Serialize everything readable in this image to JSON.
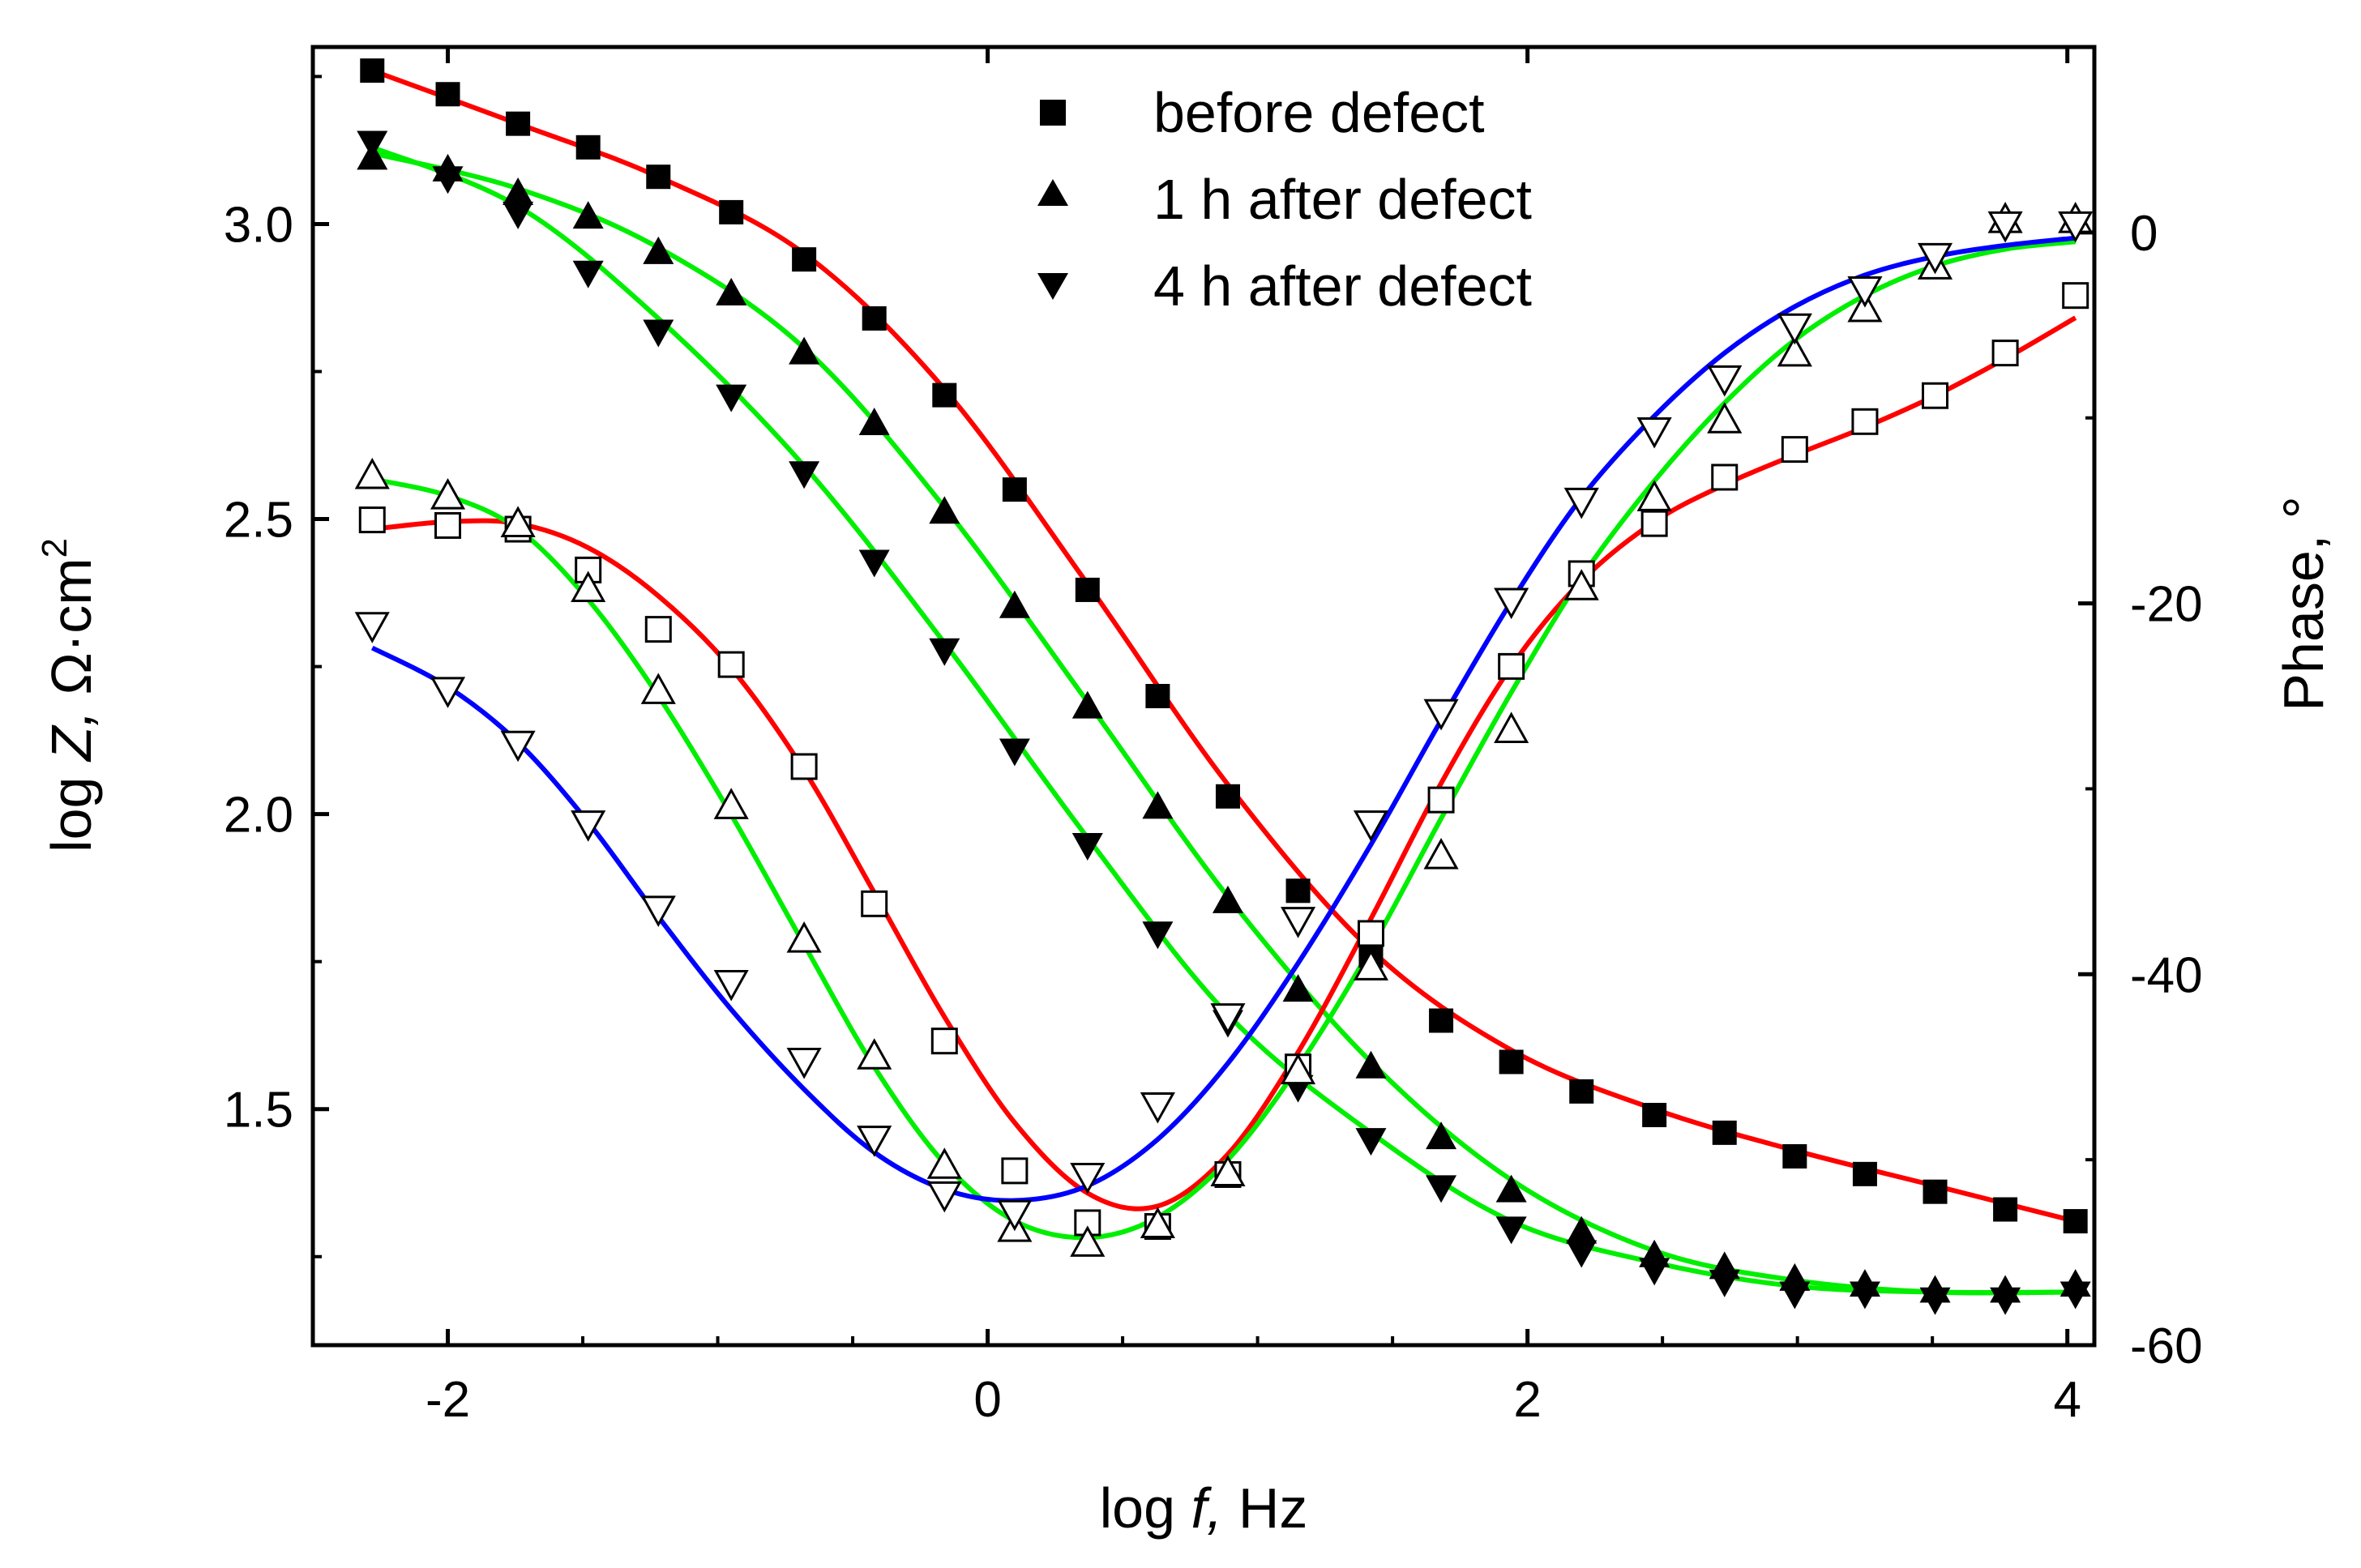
{
  "chart_data": {
    "type": "scatter",
    "title": "",
    "xlabel": {
      "prefix": "log ",
      "italic": "f,",
      "suffix": " Hz"
    },
    "ylabel_left": {
      "prefix": "log ",
      "italic": "Z,",
      "suffix": " Ω·cm",
      "sup": "2"
    },
    "ylabel_right": "Phase, °",
    "xlim": [
      -2.5,
      4.1
    ],
    "ylim_left": [
      1.1,
      3.3
    ],
    "ylim_right": [
      -60,
      10
    ],
    "x_ticks": [
      -2,
      0,
      2,
      4
    ],
    "x_tick_labels": [
      "-2",
      "0",
      "2",
      "4"
    ],
    "left_ticks": [
      1.5,
      2.0,
      2.5,
      3.0
    ],
    "left_tick_labels": [
      "1.5",
      "2.0",
      "2.5",
      "3.0"
    ],
    "right_ticks": [
      -60,
      -40,
      -20,
      0
    ],
    "right_tick_labels": [
      "-60",
      "-40",
      "-20",
      "0"
    ],
    "grid": false,
    "legend_position": "top-center",
    "legend": [
      {
        "marker": "square",
        "label": "before defect"
      },
      {
        "marker": "triangle-up",
        "label": "1 h after defect"
      },
      {
        "marker": "triangle-down",
        "label": "4 h after defect"
      }
    ],
    "x": [
      -2.28,
      -2.0,
      -1.74,
      -1.48,
      -1.22,
      -0.95,
      -0.68,
      -0.42,
      -0.16,
      0.1,
      0.37,
      0.63,
      0.89,
      1.15,
      1.42,
      1.68,
      1.94,
      2.2,
      2.47,
      2.73,
      2.99,
      3.25,
      3.51,
      3.77,
      4.03
    ],
    "series": [
      {
        "name": "before defect",
        "quantity": "log Z",
        "axis": "left",
        "marker": "square",
        "filled": true,
        "fit_color": "#ff0000",
        "values": [
          3.26,
          3.22,
          3.17,
          3.13,
          3.08,
          3.02,
          2.94,
          2.84,
          2.71,
          2.55,
          2.38,
          2.2,
          2.03,
          1.87,
          1.76,
          1.65,
          1.58,
          1.53,
          1.49,
          1.46,
          1.42,
          1.39,
          1.36,
          1.33,
          1.31
        ]
      },
      {
        "name": "1 h after defect",
        "quantity": "log Z",
        "axis": "left",
        "marker": "triangle-up",
        "filled": true,
        "fit_color": "#00ee00",
        "values": [
          3.11,
          3.09,
          3.05,
          3.01,
          2.95,
          2.88,
          2.78,
          2.66,
          2.51,
          2.35,
          2.18,
          2.01,
          1.85,
          1.7,
          1.57,
          1.45,
          1.36,
          1.29,
          1.25,
          1.23,
          1.21,
          1.2,
          1.19,
          1.19,
          1.2
        ]
      },
      {
        "name": "4 h after defect",
        "quantity": "log Z",
        "axis": "left",
        "marker": "triangle-down",
        "filled": true,
        "fit_color": "#00ee00",
        "values": [
          3.14,
          3.08,
          3.02,
          2.92,
          2.82,
          2.71,
          2.58,
          2.43,
          2.28,
          2.11,
          1.95,
          1.8,
          1.65,
          1.54,
          1.45,
          1.37,
          1.3,
          1.26,
          1.23,
          1.21,
          1.19,
          1.19,
          1.18,
          1.18,
          1.19
        ]
      },
      {
        "name": "before defect",
        "quantity": "phase",
        "axis": "right",
        "marker": "square",
        "filled": false,
        "fit_color": "#ff0000",
        "values": [
          -15.5,
          -15.8,
          -16.0,
          -18.2,
          -21.4,
          -23.3,
          -28.8,
          -36.2,
          -43.6,
          -50.6,
          -53.4,
          -53.6,
          -50.8,
          -45.0,
          -37.8,
          -30.6,
          -23.4,
          -18.4,
          -15.7,
          -13.2,
          -11.7,
          -10.2,
          -8.8,
          -6.5,
          -3.4
        ]
      },
      {
        "name": "1 h after defect",
        "quantity": "phase",
        "axis": "right",
        "marker": "triangle-up",
        "filled": false,
        "fit_color": "#00ee00",
        "values": [
          -13.2,
          -14.3,
          -15.8,
          -19.3,
          -24.8,
          -31.0,
          -38.2,
          -44.5,
          -50.4,
          -53.8,
          -54.6,
          -53.6,
          -50.8,
          -45.3,
          -39.7,
          -33.7,
          -26.9,
          -19.2,
          -14.4,
          -10.2,
          -6.6,
          -4.2,
          -1.9,
          0.6,
          0.6
        ]
      },
      {
        "name": "4 h after defect",
        "quantity": "phase",
        "axis": "right",
        "marker": "triangle-down",
        "filled": false,
        "fit_color": "#0000ff",
        "values": [
          -21.1,
          -24.6,
          -27.5,
          -31.8,
          -36.4,
          -40.4,
          -44.6,
          -48.8,
          -51.8,
          -52.8,
          -50.8,
          -47.0,
          -42.2,
          -37.0,
          -31.8,
          -25.8,
          -19.8,
          -14.4,
          -10.6,
          -7.8,
          -5.0,
          -3.0,
          -1.2,
          0.5,
          0.5
        ]
      }
    ],
    "fit_lines": [
      {
        "name": "before defect |Z| fit",
        "axis": "left",
        "color": "#ff0000",
        "x": [
          -2.28,
          -1.74,
          -1.22,
          -0.68,
          -0.16,
          0.37,
          0.89,
          1.42,
          1.94,
          2.47,
          2.99,
          3.51,
          4.03
        ],
        "values": [
          3.26,
          3.17,
          3.08,
          2.95,
          2.72,
          2.39,
          2.05,
          1.77,
          1.6,
          1.5,
          1.43,
          1.37,
          1.31
        ]
      },
      {
        "name": "1 h after defect |Z| fit",
        "axis": "left",
        "color": "#00ee00",
        "x": [
          -2.28,
          -1.74,
          -1.22,
          -0.68,
          -0.16,
          0.37,
          0.89,
          1.42,
          1.94,
          2.47,
          2.99,
          3.51,
          4.03
        ],
        "values": [
          3.12,
          3.06,
          2.96,
          2.79,
          2.52,
          2.19,
          1.86,
          1.58,
          1.38,
          1.26,
          1.21,
          1.19,
          1.19
        ]
      },
      {
        "name": "4 h after defect |Z| fit",
        "axis": "left",
        "color": "#00ee00",
        "x": [
          -2.28,
          -1.74,
          -1.22,
          -0.68,
          -0.16,
          0.37,
          0.89,
          1.42,
          1.94,
          2.47,
          2.99,
          3.51,
          4.03
        ],
        "values": [
          3.13,
          3.03,
          2.84,
          2.59,
          2.29,
          1.96,
          1.66,
          1.46,
          1.31,
          1.24,
          1.2,
          1.19,
          1.19
        ]
      },
      {
        "name": "before defect phase fit",
        "axis": "right",
        "color": "#ff0000",
        "x": [
          -2.28,
          -2.0,
          -1.74,
          -1.48,
          -1.22,
          -0.95,
          -0.68,
          -0.42,
          -0.16,
          0.1,
          0.37,
          0.63,
          0.89,
          1.15,
          1.42,
          1.68,
          1.94,
          2.2,
          2.47,
          2.73,
          2.99,
          3.25,
          3.51,
          3.77,
          4.03
        ],
        "values": [
          -16.0,
          -15.6,
          -15.7,
          -17.0,
          -19.6,
          -23.5,
          -29.0,
          -35.6,
          -42.3,
          -48.0,
          -51.8,
          -52.5,
          -49.7,
          -44.2,
          -37.0,
          -29.7,
          -23.4,
          -18.8,
          -15.6,
          -13.6,
          -12.0,
          -10.5,
          -8.8,
          -6.8,
          -4.6
        ]
      },
      {
        "name": "1 h after defect phase fit",
        "axis": "right",
        "color": "#00ee00",
        "x": [
          -2.28,
          -2.0,
          -1.74,
          -1.48,
          -1.22,
          -0.95,
          -0.68,
          -0.42,
          -0.16,
          0.1,
          0.37,
          0.63,
          0.89,
          1.15,
          1.42,
          1.68,
          1.94,
          2.2,
          2.47,
          2.73,
          2.99,
          3.25,
          3.51,
          3.77,
          4.03
        ],
        "values": [
          -13.3,
          -14.2,
          -16.0,
          -19.8,
          -25.0,
          -31.4,
          -38.4,
          -45.0,
          -50.2,
          -53.3,
          -54.2,
          -53.1,
          -50.0,
          -45.0,
          -38.6,
          -31.6,
          -24.8,
          -18.6,
          -13.4,
          -9.2,
          -5.8,
          -3.4,
          -1.8,
          -0.9,
          -0.5
        ]
      },
      {
        "name": "4 h after defect phase fit",
        "axis": "right",
        "color": "#0000ff",
        "x": [
          -2.28,
          -2.0,
          -1.74,
          -1.48,
          -1.22,
          -0.95,
          -0.68,
          -0.42,
          -0.16,
          0.1,
          0.37,
          0.63,
          0.89,
          1.15,
          1.42,
          1.68,
          1.94,
          2.2,
          2.47,
          2.73,
          2.99,
          3.25,
          3.51,
          3.77,
          4.03
        ],
        "values": [
          -22.4,
          -24.5,
          -27.5,
          -31.8,
          -36.9,
          -41.9,
          -46.2,
          -49.6,
          -51.6,
          -52.2,
          -51.4,
          -48.9,
          -44.8,
          -39.4,
          -33.0,
          -26.3,
          -19.9,
          -14.3,
          -9.9,
          -6.5,
          -4.0,
          -2.3,
          -1.3,
          -0.7,
          -0.3
        ]
      }
    ]
  }
}
